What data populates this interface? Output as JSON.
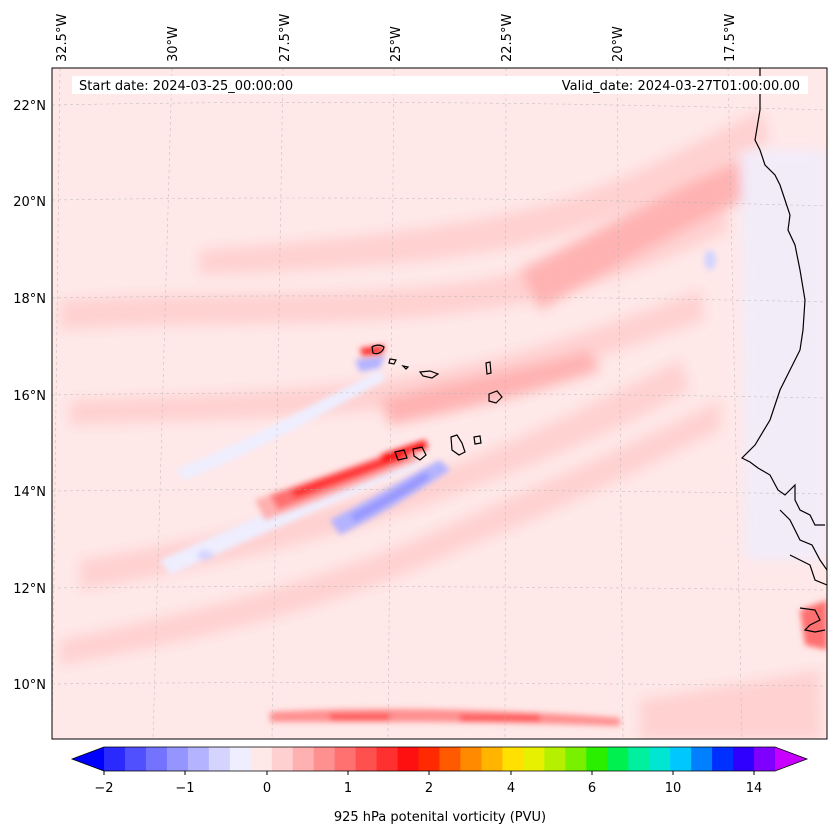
{
  "map": {
    "start_date_label": "Start date: 2024-03-25_00:00:00",
    "valid_date_label": "Valid_date: 2024-03-27T01:00:00.00",
    "lon_labels": [
      "32.5°W",
      "30°W",
      "27.5°W",
      "25°W",
      "22.5°W",
      "20°W",
      "17.5°W"
    ],
    "lat_labels": [
      "22°N",
      "20°N",
      "18°N",
      "16°N",
      "14°N",
      "12°N",
      "10°N"
    ],
    "extent": {
      "lon_min": -33,
      "lon_max": -15.5,
      "lat_min": 8.9,
      "lat_max": 22.8
    },
    "gridlines": true
  },
  "colorbar": {
    "label": "925 hPa potenital vorticity (PVU)",
    "ticks": [
      "−2",
      "−1",
      "0",
      "1",
      "2",
      "4",
      "6",
      "10",
      "14"
    ],
    "extend": "both",
    "colors": [
      "#0000ff",
      "#2a2aff",
      "#5050ff",
      "#7373ff",
      "#9595ff",
      "#b3b3ff",
      "#d4d4ff",
      "#eeeeff",
      "#ffe8e8",
      "#ffd0d0",
      "#ffb0b0",
      "#ff9090",
      "#ff7070",
      "#ff5050",
      "#ff3030",
      "#ff1010",
      "#ff2a00",
      "#ff5a00",
      "#ff8a00",
      "#ffb400",
      "#ffe000",
      "#e6f000",
      "#b4f000",
      "#78f000",
      "#2af000",
      "#00f050",
      "#00f0a0",
      "#00e6d2",
      "#00c8ff",
      "#0080ff",
      "#0030ff",
      "#3000ff",
      "#8000ff",
      "#c800ff"
    ]
  }
}
